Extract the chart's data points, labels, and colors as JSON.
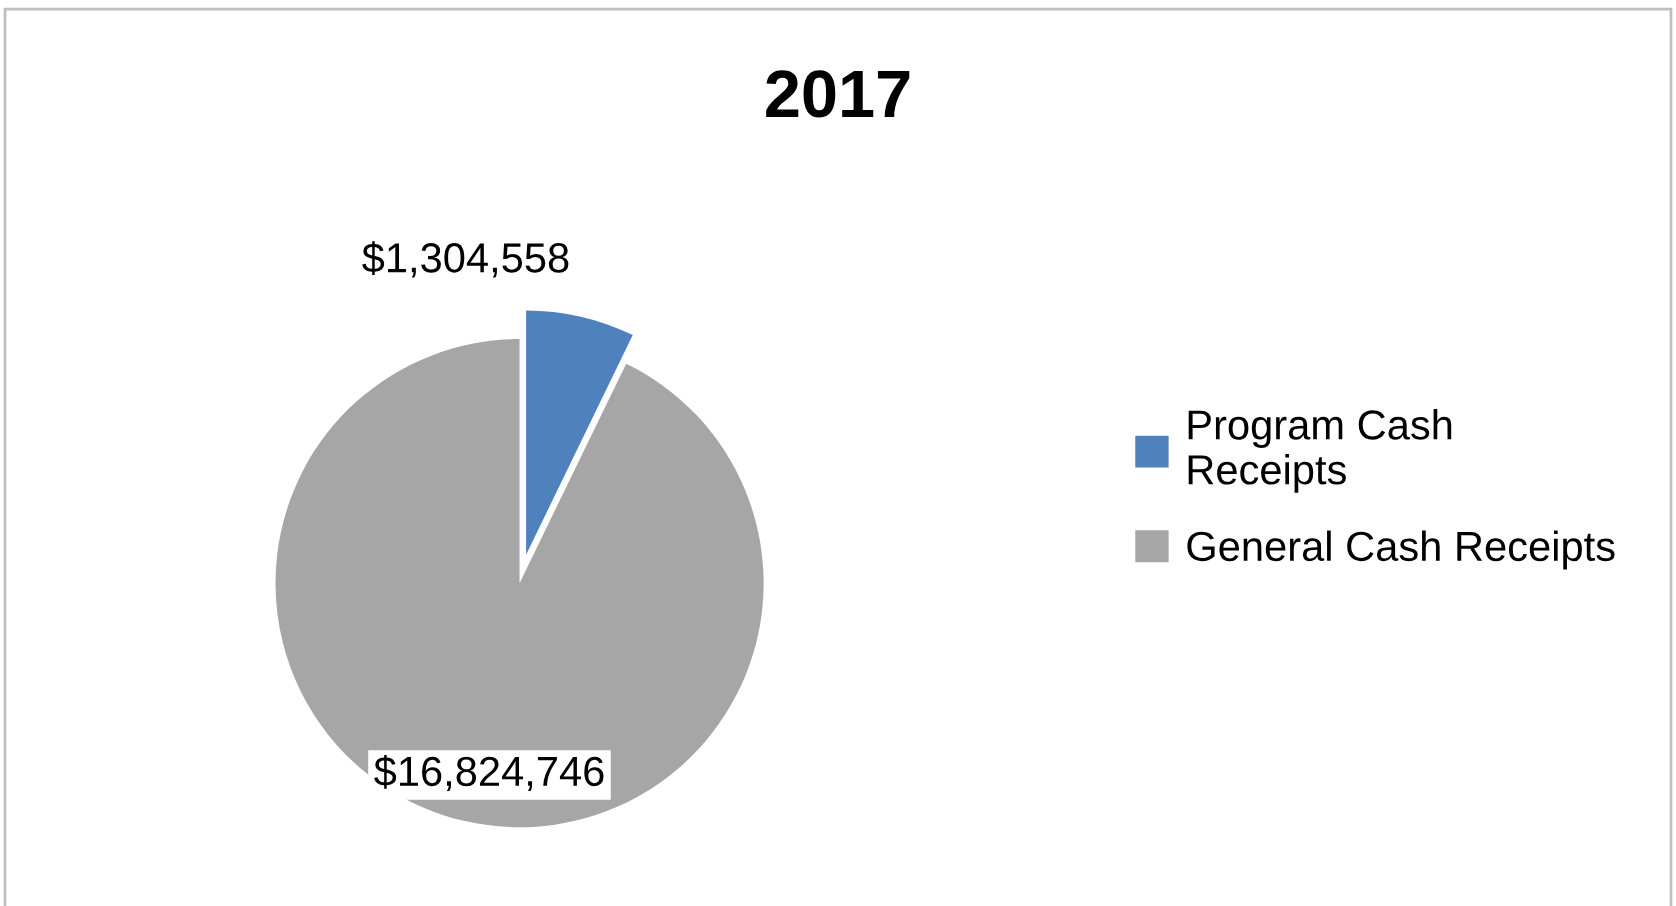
{
  "chart_data": {
    "type": "pie",
    "title": "2017",
    "categories": [
      "Program Cash Receipts",
      "General Cash Receipts"
    ],
    "values": [
      1304558,
      16824746
    ],
    "colors": [
      "#4f81bd",
      "#a6a6a6"
    ],
    "value_labels": [
      "$1,304,558",
      "$16,824,746"
    ],
    "legend": "right"
  }
}
